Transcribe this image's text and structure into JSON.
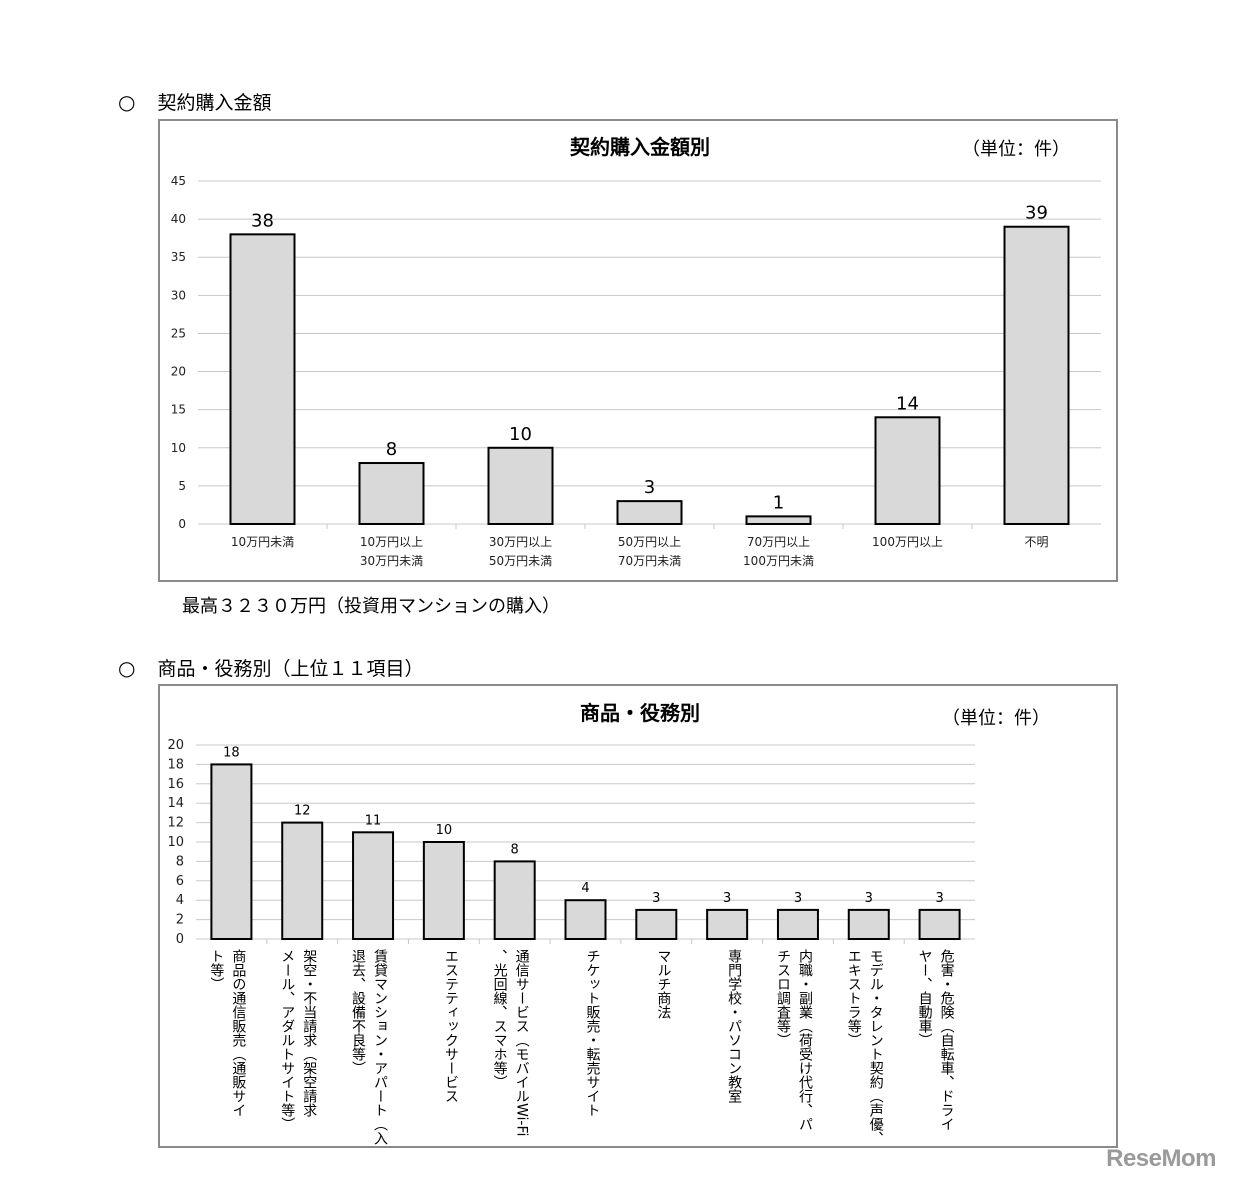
{
  "section1": {
    "heading": "契約購入金額",
    "note": "最高３２３０万円（投資用マンションの購入）"
  },
  "section2": {
    "heading": "商品・役務別（上位１１項目）"
  },
  "logo_text": "ReseMom",
  "colors": {
    "bar_fill": "#d9d9d9",
    "bar_stroke": "#000000",
    "grid": "#c8c8c8",
    "frame": "#8a8a8a"
  },
  "chart_data": [
    {
      "type": "bar",
      "title": "契約購入金額別",
      "unit": "（単位：件）",
      "categories": [
        [
          "10万円未満"
        ],
        [
          "10万円以上",
          "30万円未満"
        ],
        [
          "30万円以上",
          "50万円未満"
        ],
        [
          "50万円以上",
          "70万円未満"
        ],
        [
          "70万円以上",
          "100万円未満"
        ],
        [
          "100万円以上"
        ],
        [
          "不明"
        ]
      ],
      "values": [
        38,
        8,
        10,
        3,
        1,
        14,
        39
      ],
      "ylim": [
        0,
        45
      ],
      "yticks": [
        0,
        5,
        10,
        15,
        20,
        25,
        30,
        35,
        40,
        45
      ],
      "grid": true,
      "legend": "none"
    },
    {
      "type": "bar",
      "title": "商品・役務別",
      "unit": "（単位：件）",
      "categories": [
        [
          "商品の通信販売（通販サイ",
          "ト等）"
        ],
        [
          "架空・不当請求（架空請求",
          "メール、アダルトサイト等）"
        ],
        [
          "賃貸マンション・アパート（入",
          "退去、設備不良等）"
        ],
        [
          "エステティックサービス"
        ],
        [
          "通信サービス（モバイルWi-Fi",
          "、光回線、スマホ等）"
        ],
        [
          "チケット販売・転売サイト"
        ],
        [
          "マルチ商法"
        ],
        [
          "専門学校・パソコン教室"
        ],
        [
          "内職・副業（荷受け代行、パ",
          "チスロ調査等）"
        ],
        [
          "モデル・タレント契約（声優、",
          "エキストラ等）"
        ],
        [
          "危害・危険（自転車、ドライ",
          "ヤー、自動車）"
        ]
      ],
      "values": [
        18,
        12,
        11,
        10,
        8,
        4,
        3,
        3,
        3,
        3,
        3
      ],
      "ylim": [
        0,
        20
      ],
      "yticks": [
        0,
        2,
        4,
        6,
        8,
        10,
        12,
        14,
        16,
        18,
        20
      ],
      "grid": true,
      "legend": "none"
    }
  ]
}
